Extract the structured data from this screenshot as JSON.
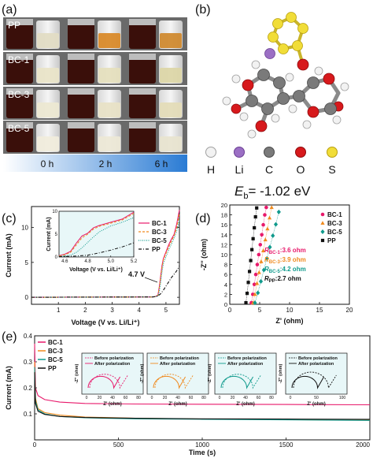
{
  "panel_a": {
    "label": "(a)",
    "rows": [
      "PP",
      "BC-1",
      "BC-3",
      "BC-5"
    ],
    "times": [
      "0 h",
      "2 h",
      "6 h"
    ],
    "colors": {
      "dark_liquid": "#3a0f0a",
      "amber": "#d98a2a",
      "pale": "#e9e4c8",
      "bg": "#6a6a6a"
    }
  },
  "panel_b": {
    "label": "(b)",
    "legend": [
      "H",
      "Li",
      "C",
      "O",
      "S"
    ],
    "legend_colors": [
      "#f2f2f2",
      "#9b6fc4",
      "#7a7a7a",
      "#d7191c",
      "#f1dd38"
    ],
    "energy_label": "E",
    "energy_sub": "b",
    "energy_value": "= -1.02 eV"
  },
  "panel_c": {
    "label": "(c)",
    "xlabel": "Voltage (V vs. Li/Li⁺)",
    "ylabel": "Current (mA)",
    "annotation": "4.7 V",
    "inset_xlabel": "Voltage (V vs. Li/Li⁺)",
    "inset_ylabel": "Current (mA)",
    "legend": [
      "BC-1",
      "BC-3",
      "BC-5",
      "PP"
    ]
  },
  "panel_d": {
    "label": "(d)",
    "xlabel": "Z' (ohm)",
    "ylabel": "-Z'' (ohm)",
    "legend": [
      "BC-1",
      "BC-3",
      "BC-5",
      "PP"
    ],
    "r_prefix": "R",
    "resistances": [
      {
        "sub": "BC-1",
        "value": ":3.6 ohm",
        "color": "#e8196b"
      },
      {
        "sub": "BC-3",
        "value": ":3.9 ohm",
        "color": "#f08a1e"
      },
      {
        "sub": "BC-5",
        "value": ":4.2 ohm",
        "color": "#0f9a8c"
      },
      {
        "sub": "PP",
        "value": ":2.7 ohm",
        "color": "#111111"
      }
    ]
  },
  "panel_e": {
    "label": "(e)",
    "xlabel": "Time (s)",
    "ylabel": "Current (mA)",
    "legend": [
      "BC-1",
      "BC-3",
      "BC-5",
      "PP"
    ],
    "inset_legend": [
      "Before polarization",
      "After polarization"
    ],
    "inset_xlabel": "Z' (ohm)",
    "inset_ylabel": "-Z'' (ohm)"
  },
  "chart_data": [
    {
      "type": "line",
      "panel": "c",
      "xlim": [
        0,
        5.5
      ],
      "ylim": [
        -1,
        13
      ],
      "xticks": [
        1,
        2,
        3,
        4,
        5
      ],
      "yticks": [
        0,
        5,
        10
      ],
      "series": [
        {
          "name": "BC-1",
          "color": "#e8196b",
          "x": [
            0,
            4.5,
            4.6,
            4.7,
            4.75,
            4.8,
            4.85,
            4.9,
            5.0,
            5.1,
            5.2,
            5.3,
            5.4,
            5.5
          ],
          "y": [
            0,
            0.05,
            0.1,
            0.3,
            1.5,
            3.0,
            4.5,
            5.5,
            6.5,
            7.5,
            8.3,
            9.0,
            10.5,
            12.5
          ]
        },
        {
          "name": "BC-3",
          "color": "#f08a1e",
          "x": [
            0,
            4.5,
            4.6,
            4.7,
            4.75,
            4.8,
            4.85,
            4.9,
            5.0,
            5.1,
            5.2,
            5.3,
            5.4,
            5.5
          ],
          "y": [
            0,
            0.05,
            0.1,
            0.25,
            1.3,
            2.8,
            4.2,
            5.3,
            6.3,
            7.2,
            8.0,
            8.8,
            10.0,
            12.0
          ]
        },
        {
          "name": "BC-5",
          "color": "#0f9a8c",
          "x": [
            0,
            4.5,
            4.6,
            4.7,
            4.75,
            4.8,
            4.85,
            4.9,
            5.0,
            5.1,
            5.2,
            5.3,
            5.4,
            5.5
          ],
          "y": [
            0,
            0.05,
            0.08,
            0.2,
            0.8,
            2.0,
            3.5,
            4.8,
            5.8,
            6.8,
            7.6,
            8.5,
            9.5,
            11.0
          ]
        },
        {
          "name": "PP",
          "color": "#111111",
          "x": [
            0,
            4.5,
            4.6,
            4.7,
            4.8,
            4.9,
            5.0,
            5.1,
            5.2,
            5.3,
            5.4,
            5.5
          ],
          "y": [
            0,
            0.05,
            0.1,
            0.2,
            0.5,
            1.0,
            1.6,
            2.2,
            2.8,
            3.3,
            3.8,
            4.5
          ]
        }
      ],
      "inset": {
        "xlim": [
          4.55,
          5.2
        ],
        "ylim": [
          0,
          10
        ],
        "xticks": [
          4.6,
          4.8,
          5.0,
          5.2
        ],
        "yticks": [
          0,
          5,
          10
        ],
        "series": [
          {
            "name": "BC-1",
            "x": [
              4.55,
              4.6,
              4.65,
              4.7,
              4.75,
              4.8,
              4.85,
              4.9,
              5.0,
              5.1,
              5.2
            ],
            "y": [
              0.3,
              0.6,
              1.2,
              3.0,
              4.6,
              5.2,
              6.4,
              6.9,
              7.6,
              8.3,
              9.8
            ]
          },
          {
            "name": "BC-3",
            "x": [
              4.55,
              4.6,
              4.65,
              4.7,
              4.75,
              4.8,
              4.85,
              4.9,
              5.0,
              5.1,
              5.2
            ],
            "y": [
              0.2,
              0.5,
              1.0,
              2.6,
              4.2,
              5.0,
              6.1,
              6.7,
              7.4,
              8.1,
              9.5
            ]
          },
          {
            "name": "BC-5",
            "x": [
              4.55,
              4.6,
              4.65,
              4.7,
              4.75,
              4.8,
              4.85,
              4.9,
              5.0,
              5.1,
              5.2
            ],
            "y": [
              0.1,
              0.2,
              0.4,
              1.0,
              2.0,
              3.2,
              4.4,
              5.5,
              6.8,
              7.6,
              8.6
            ]
          },
          {
            "name": "PP",
            "x": [
              4.55,
              4.6,
              4.7,
              4.8,
              4.9,
              5.0,
              5.1,
              5.2
            ],
            "y": [
              0.1,
              0.1,
              0.2,
              0.4,
              0.9,
              1.5,
              2.2,
              3.1
            ]
          }
        ]
      }
    },
    {
      "type": "scatter",
      "panel": "d",
      "xlim": [
        0,
        20
      ],
      "ylim": [
        0,
        20
      ],
      "xticks": [
        0,
        5,
        10,
        15,
        20
      ],
      "yticks": [
        0,
        2,
        4,
        6,
        8,
        10,
        12,
        14,
        16,
        18,
        20
      ],
      "series": [
        {
          "name": "BC-1",
          "color": "#e8196b",
          "marker": "circle",
          "x": [
            3.6,
            3.85,
            4.1,
            4.35,
            4.6,
            4.85,
            5.1,
            5.35,
            5.6,
            5.85,
            6.1
          ],
          "y": [
            0.3,
            2,
            4,
            6,
            8,
            10,
            12,
            14,
            16,
            18,
            19.5
          ]
        },
        {
          "name": "BC-3",
          "color": "#f08a1e",
          "marker": "triangle",
          "x": [
            3.9,
            4.2,
            4.55,
            4.9,
            5.25,
            5.6,
            5.95,
            6.3,
            6.65,
            7.0
          ],
          "y": [
            0.3,
            2,
            4.2,
            6.4,
            8.6,
            10.8,
            13,
            15.2,
            17.4,
            19.5
          ]
        },
        {
          "name": "BC-5",
          "color": "#0f9a8c",
          "marker": "diamond",
          "x": [
            4.2,
            4.7,
            5.2,
            5.7,
            6.2,
            6.7,
            7.2,
            7.7,
            8.2
          ],
          "y": [
            0.3,
            2.3,
            4.6,
            6.9,
            9.2,
            11.5,
            13.8,
            16.1,
            18.6
          ]
        },
        {
          "name": "PP",
          "color": "#111111",
          "marker": "square",
          "x": [
            2.7,
            2.9,
            3.1,
            3.3,
            3.5,
            3.7,
            3.9,
            4.1,
            4.3,
            4.5
          ],
          "y": [
            0.3,
            2.2,
            4.4,
            6.6,
            8.8,
            11,
            13.2,
            15.4,
            17.6,
            19.4
          ]
        }
      ]
    },
    {
      "type": "line",
      "panel": "e",
      "xlim": [
        0,
        2000
      ],
      "ylim": [
        0,
        0.4
      ],
      "xticks": [
        0,
        500,
        1000,
        1500,
        2000
      ],
      "yticks": [
        0.1,
        0.2,
        0.3,
        0.4
      ],
      "series": [
        {
          "name": "BC-1",
          "color": "#e8196b",
          "x": [
            0,
            5,
            20,
            60,
            150,
            300,
            600,
            1000,
            1500,
            2000
          ],
          "y": [
            0.37,
            0.2,
            0.17,
            0.155,
            0.145,
            0.14,
            0.138,
            0.137,
            0.136,
            0.135
          ]
        },
        {
          "name": "BC-3",
          "color": "#f08a1e",
          "x": [
            0,
            5,
            20,
            60,
            150,
            300,
            600,
            1000,
            1500,
            2000
          ],
          "y": [
            0.3,
            0.16,
            0.12,
            0.105,
            0.095,
            0.088,
            0.083,
            0.08,
            0.078,
            0.076
          ]
        },
        {
          "name": "BC-5",
          "color": "#0f9a8c",
          "x": [
            0,
            5,
            20,
            60,
            150,
            300,
            600,
            1000,
            1500,
            2000
          ],
          "y": [
            0.28,
            0.15,
            0.115,
            0.1,
            0.09,
            0.085,
            0.081,
            0.079,
            0.077,
            0.075
          ]
        },
        {
          "name": "PP",
          "color": "#111111",
          "x": [
            0,
            5,
            20,
            60,
            150,
            300,
            600,
            1000,
            1500,
            2000
          ],
          "y": [
            0.26,
            0.14,
            0.11,
            0.098,
            0.09,
            0.086,
            0.083,
            0.081,
            0.08,
            0.079
          ]
        }
      ]
    }
  ]
}
